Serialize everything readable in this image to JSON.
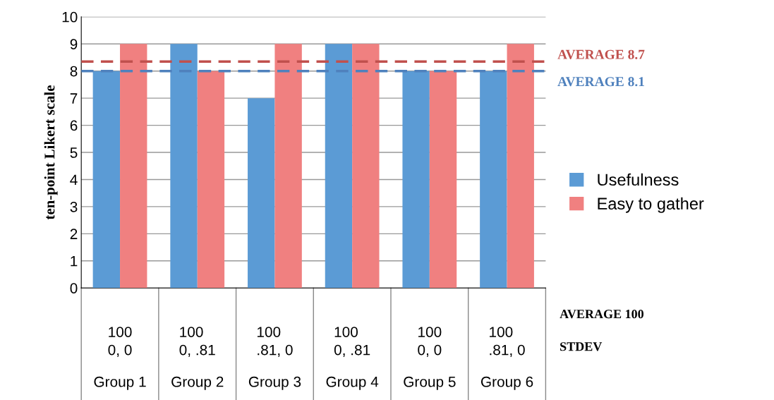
{
  "chart_data": {
    "type": "bar",
    "ylabel": "ten-point Likert scale",
    "categories": [
      "Group 1",
      "Group 2",
      "Group 3",
      "Group 4",
      "Group 5",
      "Group 6"
    ],
    "series": [
      {
        "name": "Usefulness",
        "color": "#5b9bd5",
        "values": [
          8,
          9,
          7,
          9,
          8,
          8
        ]
      },
      {
        "name": "Easy to gather",
        "color": "#f08080",
        "values": [
          9,
          8,
          9,
          9,
          8,
          9
        ]
      }
    ],
    "ylim": [
      0,
      10
    ],
    "yticks": [
      0,
      1,
      2,
      3,
      4,
      5,
      6,
      7,
      8,
      9,
      10
    ],
    "grid": "y",
    "legend": "right",
    "ref_lines": [
      {
        "axis": "y",
        "value": 8.35,
        "label": "AVERAGE 8.7",
        "color": "#c0504d",
        "line_style": "dashed"
      },
      {
        "axis": "y",
        "value": 8.0,
        "label": "AVERAGE 8.1",
        "color": "#4f81bd",
        "line_style": "dashed"
      }
    ],
    "annotations": [
      "100\n0, 0",
      "100\n0, .81",
      "100\n.81, 0",
      "100\n0, .81",
      "100\n0, 0",
      "100\n.81, 0",
      "AVERAGE 100",
      "STDEV"
    ]
  }
}
